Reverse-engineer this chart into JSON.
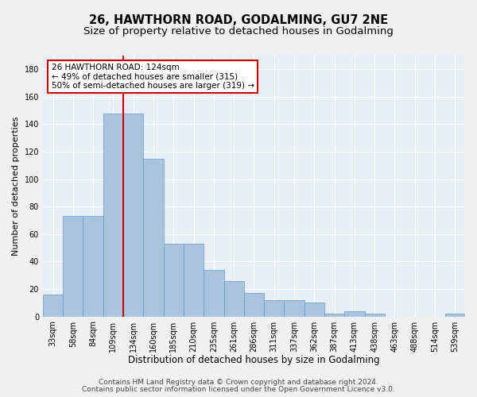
{
  "title": "26, HAWTHORN ROAD, GODALMING, GU7 2NE",
  "subtitle": "Size of property relative to detached houses in Godalming",
  "xlabel": "Distribution of detached houses by size in Godalming",
  "ylabel": "Number of detached properties",
  "categories": [
    "33sqm",
    "58sqm",
    "84sqm",
    "109sqm",
    "134sqm",
    "160sqm",
    "185sqm",
    "210sqm",
    "235sqm",
    "261sqm",
    "286sqm",
    "311sqm",
    "337sqm",
    "362sqm",
    "387sqm",
    "413sqm",
    "438sqm",
    "463sqm",
    "488sqm",
    "514sqm",
    "539sqm"
  ],
  "values": [
    16,
    73,
    73,
    148,
    148,
    115,
    53,
    53,
    34,
    26,
    17,
    12,
    12,
    10,
    2,
    4,
    2,
    0,
    0,
    0,
    2
  ],
  "bar_color": "#aac4de",
  "bar_edge_color": "#6699cc",
  "vline_color": "#cc0000",
  "annotation_text": "26 HAWTHORN ROAD: 124sqm\n← 49% of detached houses are smaller (315)\n50% of semi-detached houses are larger (319) →",
  "annotation_box_color": "#cc0000",
  "ylim": [
    0,
    190
  ],
  "yticks": [
    0,
    20,
    40,
    60,
    80,
    100,
    120,
    140,
    160,
    180
  ],
  "background_color": "#e8eef5",
  "grid_color": "#ffffff",
  "footer_line1": "Contains HM Land Registry data © Crown copyright and database right 2024.",
  "footer_line2": "Contains public sector information licensed under the Open Government Licence v3.0.",
  "title_fontsize": 10.5,
  "subtitle_fontsize": 9.5,
  "xlabel_fontsize": 8.5,
  "ylabel_fontsize": 8,
  "tick_fontsize": 7,
  "footer_fontsize": 6.5,
  "ann_fontsize": 7.5
}
